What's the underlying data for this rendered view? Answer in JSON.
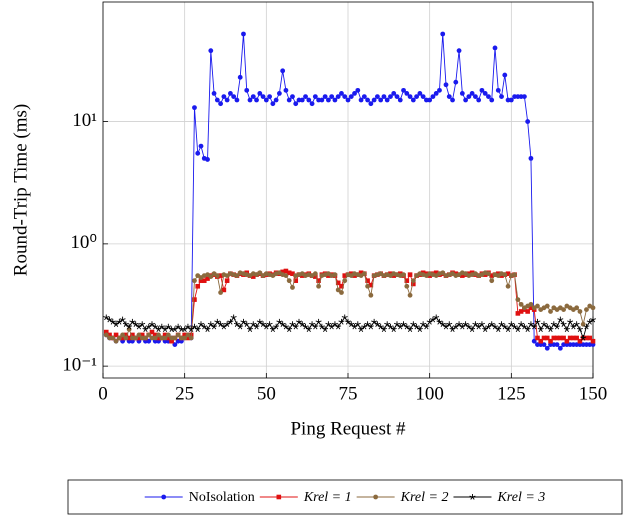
{
  "chart_data": {
    "type": "line",
    "xlabel": "Ping Request #",
    "ylabel": "Round-Trip Time (ms)",
    "log_y": true,
    "grid": true,
    "legend": "bottom",
    "xlim": [
      0,
      150
    ],
    "xticks": [
      0,
      25,
      50,
      75,
      100,
      125,
      150
    ],
    "ylim": [
      0.08,
      95
    ],
    "yticks": [
      {
        "value": 0.1,
        "label": "10⁻¹"
      },
      {
        "value": 1,
        "label": "10⁰"
      },
      {
        "value": 10,
        "label": "10¹"
      }
    ],
    "x": [
      1,
      2,
      3,
      4,
      5,
      6,
      7,
      8,
      9,
      10,
      11,
      12,
      13,
      14,
      15,
      16,
      17,
      18,
      19,
      20,
      21,
      22,
      23,
      24,
      25,
      26,
      27,
      28,
      29,
      30,
      31,
      32,
      33,
      34,
      35,
      36,
      37,
      38,
      39,
      40,
      41,
      42,
      43,
      44,
      45,
      46,
      47,
      48,
      49,
      50,
      51,
      52,
      53,
      54,
      55,
      56,
      57,
      58,
      59,
      60,
      61,
      62,
      63,
      64,
      65,
      66,
      67,
      68,
      69,
      70,
      71,
      72,
      73,
      74,
      75,
      76,
      77,
      78,
      79,
      80,
      81,
      82,
      83,
      84,
      85,
      86,
      87,
      88,
      89,
      90,
      91,
      92,
      93,
      94,
      95,
      96,
      97,
      98,
      99,
      100,
      101,
      102,
      103,
      104,
      105,
      106,
      107,
      108,
      109,
      110,
      111,
      112,
      113,
      114,
      115,
      116,
      117,
      118,
      119,
      120,
      121,
      122,
      123,
      124,
      125,
      126,
      127,
      128,
      129,
      130,
      131,
      132,
      133,
      134,
      135,
      136,
      137,
      138,
      139,
      140,
      141,
      142,
      143,
      144,
      145,
      146,
      147,
      148,
      149,
      150
    ],
    "series": [
      {
        "name": "NoIsolation",
        "color": "#1a1aee",
        "marker": "circle",
        "values": [
          0.18,
          0.17,
          0.17,
          0.16,
          0.17,
          0.16,
          0.17,
          0.16,
          0.16,
          0.17,
          0.16,
          0.17,
          0.16,
          0.16,
          0.17,
          0.16,
          0.16,
          0.17,
          0.16,
          0.16,
          0.17,
          0.15,
          0.16,
          0.16,
          0.17,
          0.18,
          0.17,
          13,
          5.5,
          6.3,
          5,
          4.9,
          38,
          17,
          15,
          14,
          16,
          15,
          17,
          16,
          15,
          23,
          52,
          18,
          15,
          16,
          15,
          17,
          16,
          15,
          16,
          14,
          15,
          17,
          26,
          18,
          15,
          16,
          14,
          15,
          15,
          16,
          15,
          14,
          16,
          15,
          15,
          16,
          15,
          16,
          15,
          16,
          17,
          16,
          15,
          16,
          17,
          18,
          15,
          16,
          15,
          14,
          15,
          16,
          15,
          16,
          15,
          16,
          17,
          16,
          15,
          18,
          17,
          16,
          15,
          16,
          17,
          16,
          15,
          15,
          16,
          17,
          18,
          52,
          20,
          16,
          15,
          21,
          38,
          17,
          15,
          16,
          17,
          16,
          15,
          18,
          17,
          16,
          15,
          40,
          18,
          16,
          24,
          15,
          15,
          16,
          16,
          16,
          16,
          10,
          5,
          0.16,
          0.15,
          0.15,
          0.15,
          0.14,
          0.15,
          0.15,
          0.15,
          0.14,
          0.15,
          0.15,
          0.15,
          0.15,
          0.15,
          0.15,
          0.15,
          0.15,
          0.15,
          0.15
        ]
      },
      {
        "name": "Krel = 1",
        "color": "#e01010",
        "marker": "square",
        "values": [
          0.19,
          0.18,
          0.17,
          0.18,
          0.17,
          0.17,
          0.18,
          0.17,
          0.18,
          0.17,
          0.17,
          0.18,
          0.17,
          0.18,
          0.19,
          0.18,
          0.17,
          0.17,
          0.18,
          0.17,
          0.16,
          0.17,
          0.18,
          0.17,
          0.18,
          0.17,
          0.18,
          0.35,
          0.45,
          0.5,
          0.5,
          0.52,
          0.55,
          0.56,
          0.54,
          0.55,
          0.42,
          0.5,
          0.57,
          0.56,
          0.55,
          0.57,
          0.56,
          0.58,
          0.55,
          0.54,
          0.56,
          0.57,
          0.55,
          0.56,
          0.57,
          0.56,
          0.58,
          0.57,
          0.59,
          0.6,
          0.58,
          0.57,
          0.5,
          0.56,
          0.55,
          0.56,
          0.57,
          0.55,
          0.54,
          0.5,
          0.56,
          0.57,
          0.55,
          0.56,
          0.55,
          0.48,
          0.45,
          0.55,
          0.56,
          0.57,
          0.55,
          0.56,
          0.58,
          0.57,
          0.5,
          0.46,
          0.55,
          0.56,
          0.57,
          0.55,
          0.56,
          0.57,
          0.55,
          0.56,
          0.57,
          0.55,
          0.5,
          0.56,
          0.47,
          0.55,
          0.56,
          0.58,
          0.57,
          0.55,
          0.57,
          0.58,
          0.56,
          0.57,
          0.55,
          0.56,
          0.58,
          0.57,
          0.56,
          0.55,
          0.56,
          0.57,
          0.58,
          0.56,
          0.55,
          0.57,
          0.56,
          0.58,
          0.55,
          0.56,
          0.57,
          0.55,
          0.56,
          0.57,
          0.55,
          0.56,
          0.27,
          0.28,
          0.29,
          0.28,
          0.3,
          0.29,
          0.17,
          0.16,
          0.17,
          0.17,
          0.16,
          0.17,
          0.17,
          0.17,
          0.17,
          0.16,
          0.17,
          0.17,
          0.17,
          0.16,
          0.17,
          0.17,
          0.17,
          0.16
        ]
      },
      {
        "name": "Krel = 2",
        "color": "#8b6a3e",
        "marker": "circle",
        "values": [
          0.18,
          0.17,
          0.17,
          0.16,
          0.17,
          0.18,
          0.17,
          0.2,
          0.17,
          0.17,
          0.18,
          0.17,
          0.17,
          0.18,
          0.17,
          0.17,
          0.18,
          0.17,
          0.17,
          0.18,
          0.17,
          0.17,
          0.18,
          0.17,
          0.17,
          0.18,
          0.17,
          0.5,
          0.55,
          0.53,
          0.55,
          0.56,
          0.54,
          0.57,
          0.55,
          0.4,
          0.56,
          0.55,
          0.57,
          0.56,
          0.55,
          0.58,
          0.57,
          0.56,
          0.55,
          0.57,
          0.56,
          0.58,
          0.55,
          0.57,
          0.56,
          0.55,
          0.57,
          0.58,
          0.56,
          0.55,
          0.5,
          0.44,
          0.55,
          0.56,
          0.57,
          0.55,
          0.56,
          0.55,
          0.57,
          0.45,
          0.55,
          0.56,
          0.57,
          0.55,
          0.56,
          0.42,
          0.4,
          0.5,
          0.56,
          0.55,
          0.57,
          0.56,
          0.55,
          0.57,
          0.45,
          0.38,
          0.55,
          0.56,
          0.57,
          0.55,
          0.56,
          0.55,
          0.57,
          0.56,
          0.55,
          0.56,
          0.45,
          0.38,
          0.5,
          0.55,
          0.57,
          0.56,
          0.55,
          0.57,
          0.56,
          0.55,
          0.57,
          0.58,
          0.55,
          0.56,
          0.57,
          0.55,
          0.56,
          0.58,
          0.57,
          0.55,
          0.56,
          0.57,
          0.55,
          0.56,
          0.58,
          0.57,
          0.5,
          0.56,
          0.55,
          0.57,
          0.56,
          0.45,
          0.55,
          0.56,
          0.35,
          0.32,
          0.3,
          0.31,
          0.32,
          0.3,
          0.31,
          0.29,
          0.3,
          0.31,
          0.28,
          0.3,
          0.29,
          0.3,
          0.29,
          0.31,
          0.3,
          0.29,
          0.3,
          0.28,
          0.22,
          0.29,
          0.31,
          0.3
        ]
      },
      {
        "name": "Krel = 3",
        "color": "#000000",
        "marker": "star",
        "values": [
          0.25,
          0.24,
          0.23,
          0.22,
          0.23,
          0.24,
          0.22,
          0.21,
          0.23,
          0.22,
          0.21,
          0.22,
          0.2,
          0.21,
          0.22,
          0.21,
          0.2,
          0.21,
          0.2,
          0.21,
          0.2,
          0.2,
          0.21,
          0.2,
          0.2,
          0.21,
          0.2,
          0.21,
          0.2,
          0.22,
          0.21,
          0.2,
          0.22,
          0.21,
          0.23,
          0.22,
          0.21,
          0.22,
          0.23,
          0.25,
          0.22,
          0.21,
          0.23,
          0.22,
          0.2,
          0.22,
          0.21,
          0.23,
          0.22,
          0.21,
          0.22,
          0.2,
          0.21,
          0.23,
          0.22,
          0.21,
          0.2,
          0.22,
          0.21,
          0.23,
          0.22,
          0.21,
          0.2,
          0.22,
          0.21,
          0.23,
          0.21,
          0.2,
          0.22,
          0.21,
          0.22,
          0.21,
          0.23,
          0.25,
          0.23,
          0.22,
          0.21,
          0.22,
          0.2,
          0.21,
          0.22,
          0.21,
          0.23,
          0.22,
          0.21,
          0.2,
          0.22,
          0.21,
          0.2,
          0.22,
          0.21,
          0.22,
          0.21,
          0.2,
          0.22,
          0.21,
          0.2,
          0.22,
          0.21,
          0.23,
          0.24,
          0.25,
          0.23,
          0.22,
          0.21,
          0.22,
          0.2,
          0.21,
          0.22,
          0.21,
          0.22,
          0.21,
          0.2,
          0.22,
          0.21,
          0.22,
          0.2,
          0.21,
          0.22,
          0.21,
          0.2,
          0.22,
          0.21,
          0.2,
          0.22,
          0.21,
          0.2,
          0.22,
          0.21,
          0.2,
          0.22,
          0.21,
          0.23,
          0.2,
          0.22,
          0.21,
          0.2,
          0.22,
          0.21,
          0.24,
          0.22,
          0.2,
          0.23,
          0.21,
          0.22,
          0.2,
          0.17,
          0.21,
          0.23,
          0.24
        ]
      }
    ]
  }
}
